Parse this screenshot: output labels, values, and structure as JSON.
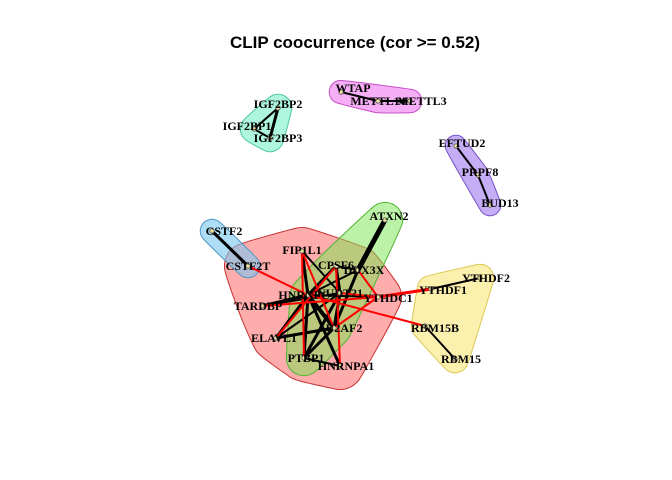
{
  "title": "CLIP coocurrence (cor >= 0.52)",
  "colors": {
    "edge_positive": "#000000",
    "edge_negative": "#ff0000",
    "node_fill": "#f0e4a0",
    "node_stroke": "#555555"
  },
  "groups": [
    {
      "name": "group-1",
      "fill": "#ff5a5a",
      "stroke": "#c83232",
      "opacity": 0.5,
      "members": [
        "FIP1L1",
        "CPSF6",
        "HNRNPC",
        "NUDT21",
        "TARDBP",
        "ELAVL1",
        "PTBP1",
        "HNRNPA1",
        "U2AF2",
        "YTHDC1",
        "DDX3X",
        "CSTF2T"
      ]
    },
    {
      "name": "group-2",
      "fill": "#78e650",
      "stroke": "#50b432",
      "opacity": 0.5,
      "members": [
        "ATXN2",
        "DDX3X",
        "CPSF6",
        "U2AF2",
        "PTBP1",
        "HNRNPC"
      ]
    },
    {
      "name": "group-3",
      "fill": "#78c8f0",
      "stroke": "#5096c8",
      "opacity": 0.6,
      "members": [
        "CSTF2",
        "CSTF2T"
      ]
    },
    {
      "name": "group-4",
      "fill": "#fae678",
      "stroke": "#dcc850",
      "opacity": 0.6,
      "members": [
        "YTHDF1",
        "YTHDF2",
        "RBM15B",
        "RBM15"
      ]
    },
    {
      "name": "group-5",
      "fill": "#f078f0",
      "stroke": "#c850c8",
      "opacity": 0.6,
      "members": [
        "WTAP",
        "METTL14",
        "METTL3"
      ]
    },
    {
      "name": "group-6",
      "fill": "#78f0c8",
      "stroke": "#50c8a0",
      "opacity": 0.6,
      "members": [
        "IGF2BP2",
        "IGF2BP1",
        "IGF2BP3"
      ]
    },
    {
      "name": "group-7",
      "fill": "#a078f0",
      "stroke": "#7850c8",
      "opacity": 0.6,
      "members": [
        "EFTUD2",
        "PRPF8",
        "BUD13"
      ]
    }
  ],
  "nodes": [
    {
      "id": "IGF2BP2",
      "label": "IGF2BP2"
    },
    {
      "id": "IGF2BP1",
      "label": "IGF2BP1"
    },
    {
      "id": "IGF2BP3",
      "label": "IGF2BP3"
    },
    {
      "id": "WTAP",
      "label": "WTAP"
    },
    {
      "id": "METTL14",
      "label": "METTL14"
    },
    {
      "id": "METTL3",
      "label": "METTL3"
    },
    {
      "id": "EFTUD2",
      "label": "EFTUD2"
    },
    {
      "id": "PRPF8",
      "label": "PRPF8"
    },
    {
      "id": "BUD13",
      "label": "BUD13"
    },
    {
      "id": "ATXN2",
      "label": "ATXN2"
    },
    {
      "id": "CSTF2",
      "label": "CSTF2"
    },
    {
      "id": "CSTF2T",
      "label": "CSTF2T"
    },
    {
      "id": "FIP1L1",
      "label": "FIP1L1"
    },
    {
      "id": "CPSF6",
      "label": "CPSF6"
    },
    {
      "id": "DDX3X",
      "label": "DDX3X"
    },
    {
      "id": "HNRNPC",
      "label": "HNRNPC"
    },
    {
      "id": "NUDT21",
      "label": "NUDT21"
    },
    {
      "id": "YTHDC1",
      "label": "YTHDC1"
    },
    {
      "id": "YTHDF1",
      "label": "YTHDF1"
    },
    {
      "id": "YTHDF2",
      "label": "YTHDF2"
    },
    {
      "id": "TARDBP",
      "label": "TARDBP"
    },
    {
      "id": "U2AF2",
      "label": "U2AF2"
    },
    {
      "id": "RBM15B",
      "label": "RBM15B"
    },
    {
      "id": "ELAVL1",
      "label": "ELAVL1"
    },
    {
      "id": "RBM15",
      "label": "RBM15"
    },
    {
      "id": "PTBP1",
      "label": "PTBP1"
    },
    {
      "id": "HNRNPA1",
      "label": "HNRNPA1"
    }
  ],
  "edges": [
    {
      "from": "IGF2BP2",
      "to": "IGF2BP3",
      "sign": "positive",
      "weight": 3
    },
    {
      "from": "IGF2BP1",
      "to": "IGF2BP3",
      "sign": "positive",
      "weight": 2
    },
    {
      "from": "IGF2BP2",
      "to": "IGF2BP1",
      "sign": "positive",
      "weight": 2
    },
    {
      "from": "WTAP",
      "to": "METTL14",
      "sign": "positive",
      "weight": 2
    },
    {
      "from": "METTL14",
      "to": "METTL3",
      "sign": "positive",
      "weight": 2
    },
    {
      "from": "EFTUD2",
      "to": "PRPF8",
      "sign": "positive",
      "weight": 2
    },
    {
      "from": "PRPF8",
      "to": "BUD13",
      "sign": "positive",
      "weight": 2
    },
    {
      "from": "CSTF2",
      "to": "CSTF2T",
      "sign": "positive",
      "weight": 3
    },
    {
      "from": "ATXN2",
      "to": "DDX3X",
      "sign": "positive",
      "weight": 5
    },
    {
      "from": "YTHDF1",
      "to": "YTHDF2",
      "sign": "positive",
      "weight": 2
    },
    {
      "from": "RBM15B",
      "to": "RBM15",
      "sign": "positive",
      "weight": 2
    },
    {
      "from": "FIP1L1",
      "to": "HNRNPC",
      "sign": "positive",
      "weight": 3
    },
    {
      "from": "FIP1L1",
      "to": "NUDT21",
      "sign": "positive",
      "weight": 2
    },
    {
      "from": "CPSF6",
      "to": "NUDT21",
      "sign": "positive",
      "weight": 3
    },
    {
      "from": "CPSF6",
      "to": "HNRNPC",
      "sign": "positive",
      "weight": 3
    },
    {
      "from": "CPSF6",
      "to": "DDX3X",
      "sign": "positive",
      "weight": 2
    },
    {
      "from": "HNRNPC",
      "to": "U2AF2",
      "sign": "positive",
      "weight": 4
    },
    {
      "from": "HNRNPC",
      "to": "TARDBP",
      "sign": "positive",
      "weight": 3
    },
    {
      "from": "HNRNPC",
      "to": "ELAVL1",
      "sign": "positive",
      "weight": 3
    },
    {
      "from": "HNRNPC",
      "to": "PTBP1",
      "sign": "positive",
      "weight": 3
    },
    {
      "from": "HNRNPC",
      "to": "HNRNPA1",
      "sign": "positive",
      "weight": 3
    },
    {
      "from": "NUDT21",
      "to": "U2AF2",
      "sign": "positive",
      "weight": 3
    },
    {
      "from": "NUDT21",
      "to": "PTBP1",
      "sign": "positive",
      "weight": 3
    },
    {
      "from": "U2AF2",
      "to": "PTBP1",
      "sign": "positive",
      "weight": 3
    },
    {
      "from": "U2AF2",
      "to": "ELAVL1",
      "sign": "positive",
      "weight": 3
    },
    {
      "from": "DDX3X",
      "to": "U2AF2",
      "sign": "positive",
      "weight": 3
    },
    {
      "from": "DDX3X",
      "to": "HNRNPC",
      "sign": "positive",
      "weight": 2
    },
    {
      "from": "TARDBP",
      "to": "NUDT21",
      "sign": "positive",
      "weight": 2
    },
    {
      "from": "ELAVL1",
      "to": "NUDT21",
      "sign": "positive",
      "weight": 2
    },
    {
      "from": "PTBP1",
      "to": "HNRNPA1",
      "sign": "positive",
      "weight": 2
    },
    {
      "from": "YTHDC1",
      "to": "HNRNPC",
      "sign": "positive",
      "weight": 2
    },
    {
      "from": "CSTF2T",
      "to": "HNRNPC",
      "sign": "negative",
      "weight": 2
    },
    {
      "from": "YTHDC1",
      "to": "YTHDF1",
      "sign": "negative",
      "weight": 3
    },
    {
      "from": "RBM15B",
      "to": "HNRNPC",
      "sign": "negative",
      "weight": 2
    },
    {
      "from": "YTHDC1",
      "to": "U2AF2",
      "sign": "negative",
      "weight": 2
    },
    {
      "from": "ELAVL1",
      "to": "CPSF6",
      "sign": "negative",
      "weight": 2
    },
    {
      "from": "FIP1L1",
      "to": "U2AF2",
      "sign": "negative",
      "weight": 2
    },
    {
      "from": "DDX3X",
      "to": "YTHDC1",
      "sign": "negative",
      "weight": 2
    },
    {
      "from": "NUDT21",
      "to": "YTHDC1",
      "sign": "negative",
      "weight": 2
    },
    {
      "from": "HNRNPA1",
      "to": "CPSF6",
      "sign": "negative",
      "weight": 2
    },
    {
      "from": "TARDBP",
      "to": "YTHDC1",
      "sign": "negative",
      "weight": 2
    },
    {
      "from": "PTBP1",
      "to": "FIP1L1",
      "sign": "negative",
      "weight": 2
    }
  ]
}
